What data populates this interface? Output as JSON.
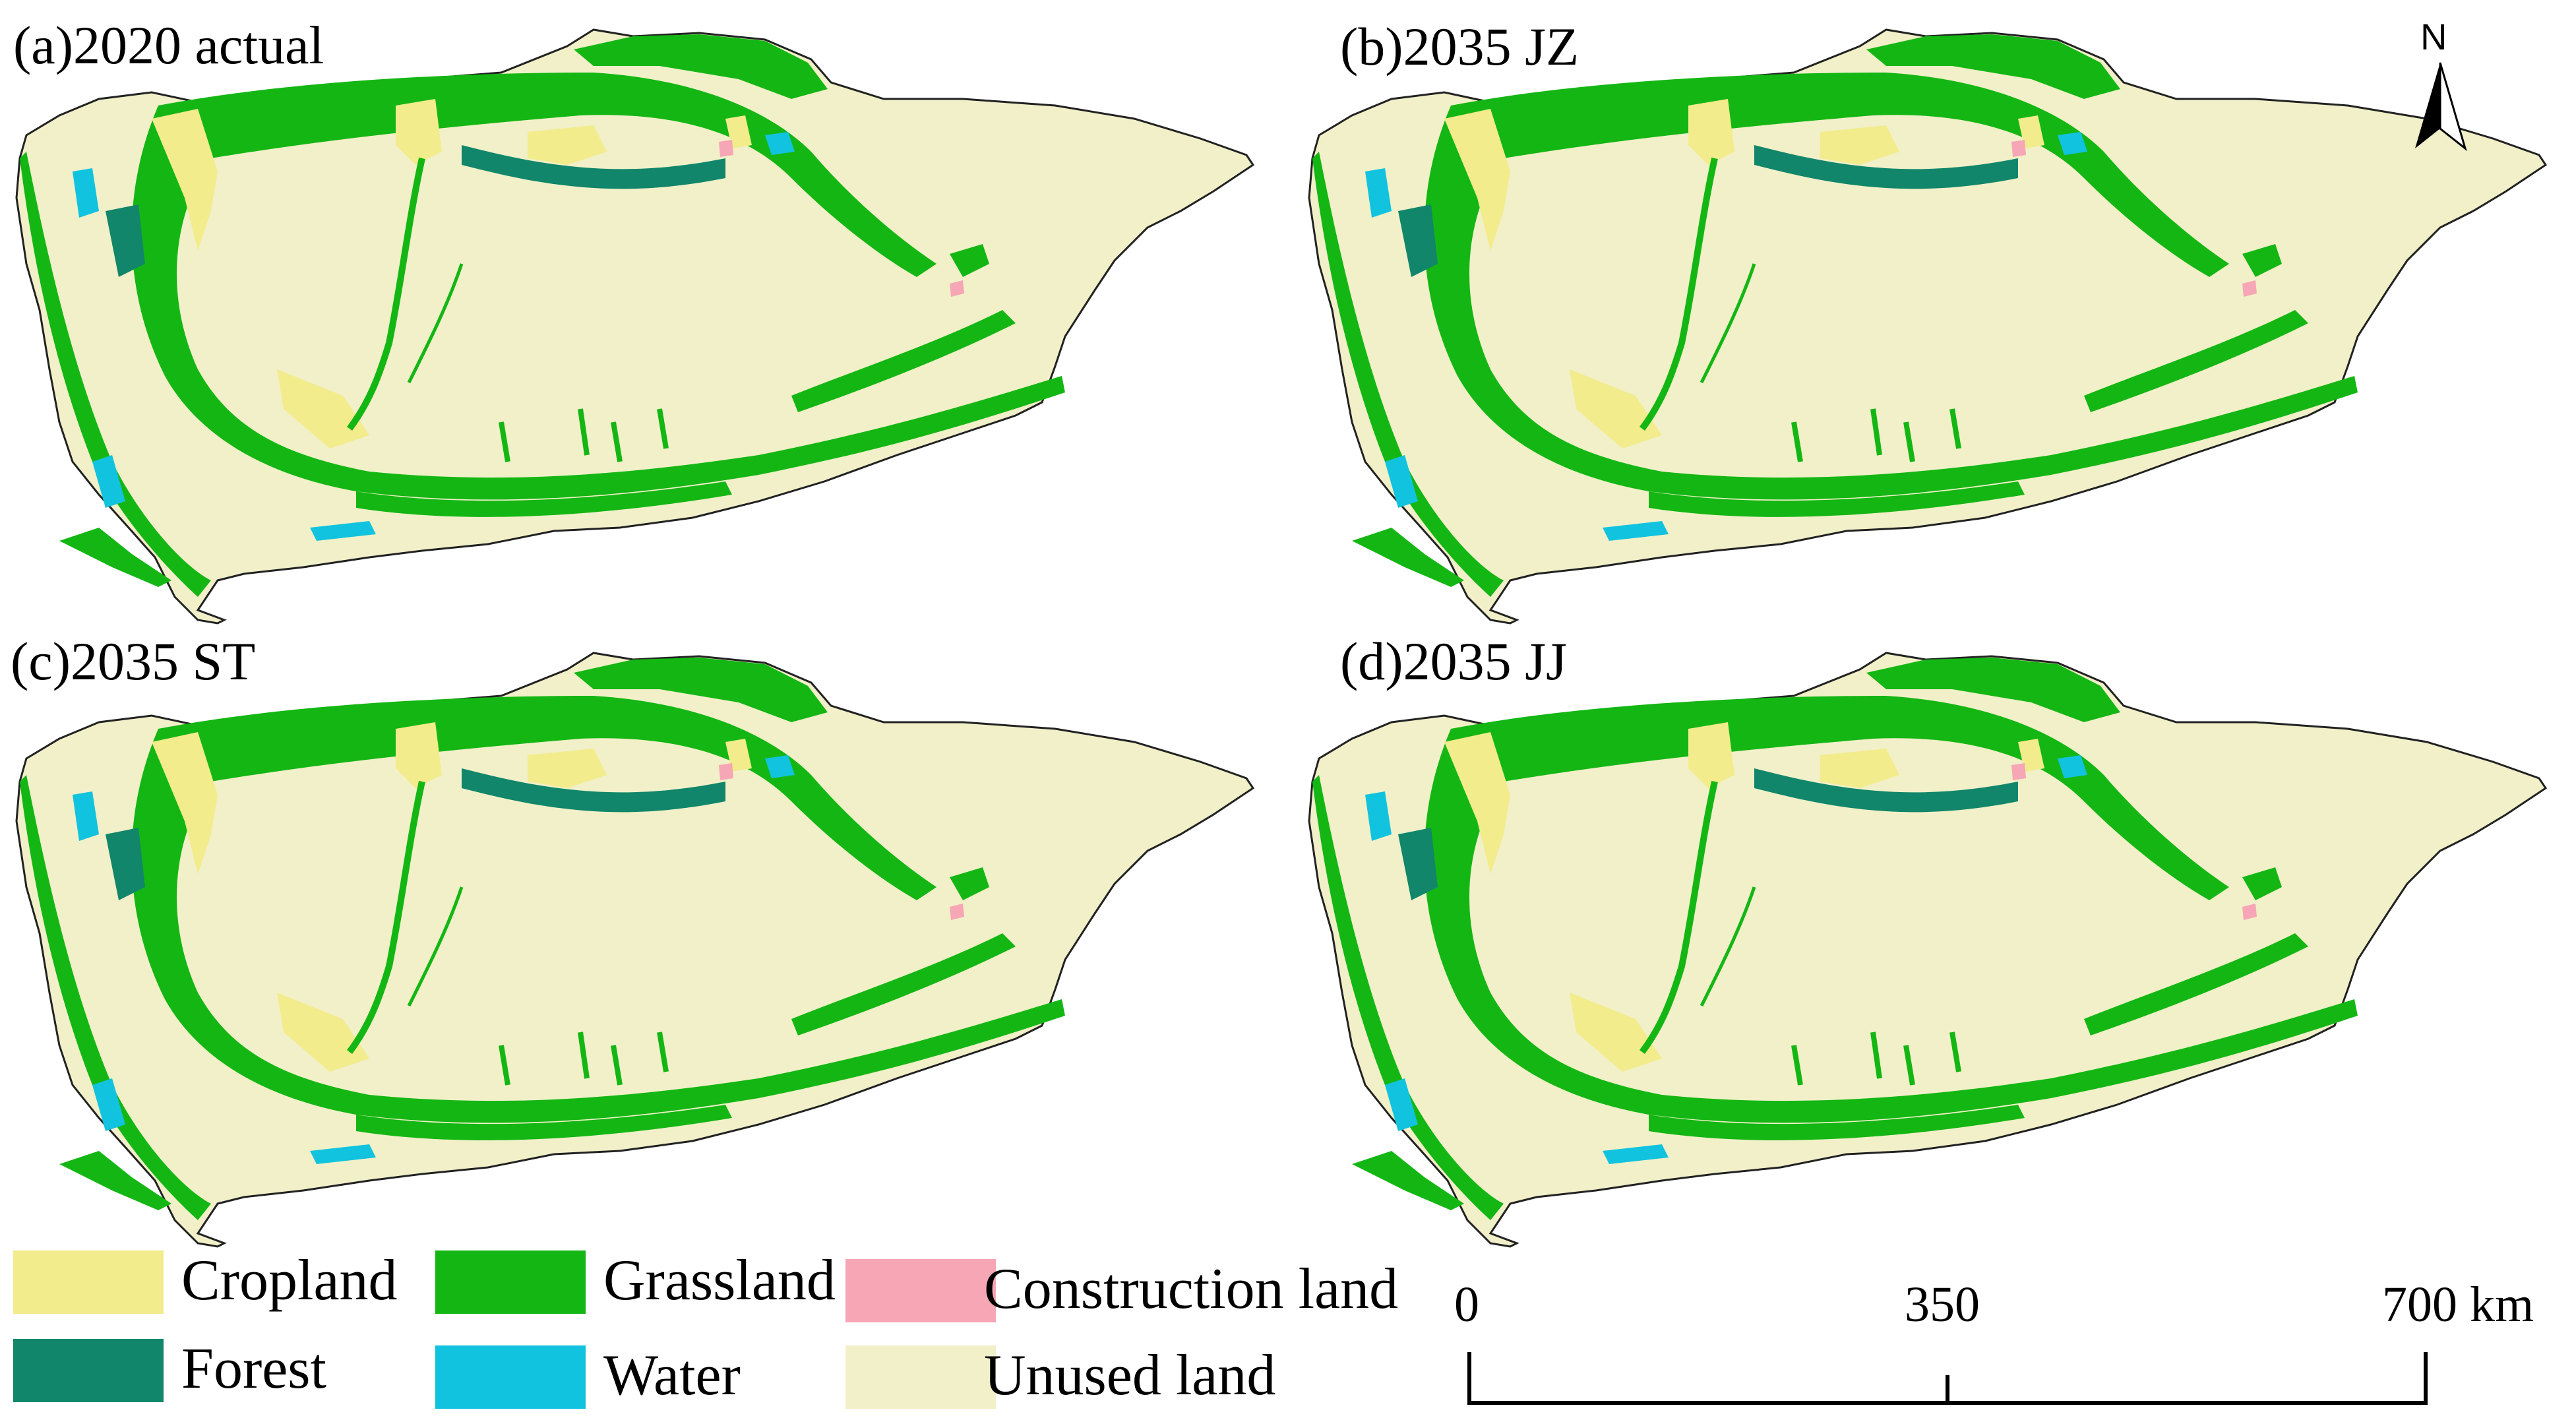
{
  "panels": [
    {
      "id": "a",
      "title": "(a)2020 actual"
    },
    {
      "id": "b",
      "title": "(b)2035 JZ"
    },
    {
      "id": "c",
      "title": "(c)2035 ST"
    },
    {
      "id": "d",
      "title": "(d)2035 JJ"
    }
  ],
  "legend": [
    {
      "label": "Cropland",
      "color": "#f2ec8c"
    },
    {
      "label": "Grassland",
      "color": "#14b614"
    },
    {
      "label": "Construction land",
      "color": "#f6a6b5"
    },
    {
      "label": "Forest",
      "color": "#11866a"
    },
    {
      "label": "Water",
      "color": "#11c3de"
    },
    {
      "label": "Unused land",
      "color": "#f1f0c9"
    }
  ],
  "north_arrow": {
    "label": "N"
  },
  "scale_bar": {
    "labels": [
      "0",
      "350",
      "700 km"
    ]
  }
}
